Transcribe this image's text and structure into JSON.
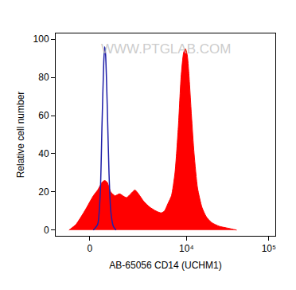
{
  "chart_data": {
    "type": "area",
    "x_label": "AB-65056 CD14 (UCHM1)",
    "y_label": "Relative cell number",
    "annotations": [
      "WWW.PTGLAB.COM"
    ],
    "xlim": [
      -1500,
      120000
    ],
    "ylim": [
      -3,
      103
    ],
    "xticks": [
      0,
      {
        "value": 10000,
        "label": "10⁴"
      },
      {
        "value": 100000,
        "label": "10⁵"
      }
    ],
    "yticks": [
      0,
      20,
      40,
      60,
      80,
      100
    ],
    "grid": false,
    "series": [
      {
        "type": "area",
        "color": "#ff0000",
        "x": [
          -836,
          -539,
          -198,
          132,
          298,
          468,
          576,
          684,
          836,
          1035,
          1254,
          1635,
          2022,
          2198,
          2456,
          2904,
          3487,
          4180,
          4858,
          5360,
          5930,
          6541,
          7233,
          7979,
          8590,
          9241,
          9716,
          10205,
          10707,
          11521,
          12403,
          13665,
          15443,
          17451,
          20178,
          25091,
          31985,
          40805
        ],
        "values": [
          0,
          3,
          10,
          18,
          21,
          25,
          26,
          25,
          20,
          18,
          19,
          17,
          20,
          21,
          19,
          15,
          12,
          10,
          9,
          10,
          14,
          18,
          30,
          55,
          80,
          93,
          95,
          92,
          82,
          60,
          40,
          22,
          12,
          7,
          4,
          2,
          1,
          0
        ]
      },
      {
        "type": "line",
        "color": "#1f1fa8",
        "x": [
          132,
          298,
          401,
          468,
          539,
          576,
          614,
          684,
          759,
          836,
          953,
          1076
        ],
        "values": [
          0,
          3,
          20,
          55,
          88,
          96,
          92,
          65,
          30,
          10,
          2,
          0
        ]
      }
    ]
  }
}
